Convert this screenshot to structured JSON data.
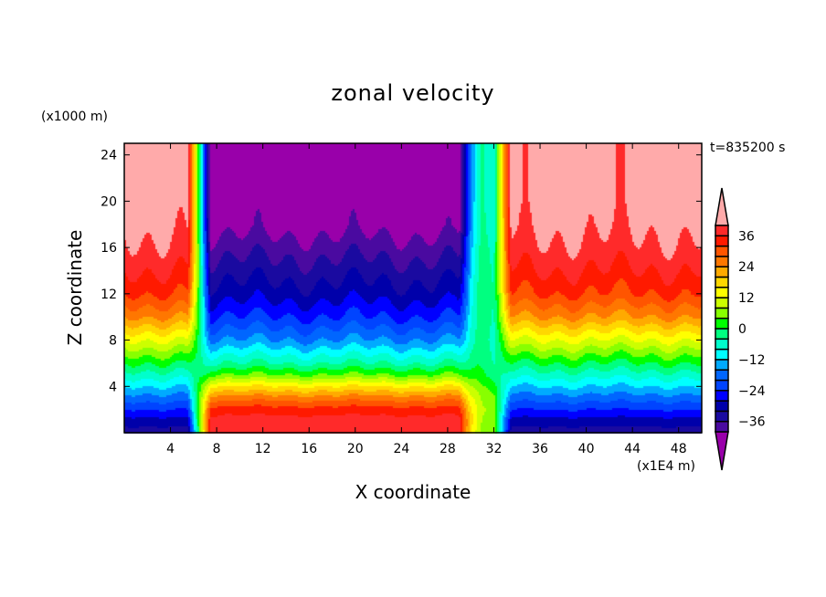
{
  "chart_data": {
    "type": "heatmap",
    "title": "zonal velocity",
    "xlabel": "X coordinate",
    "ylabel": "Z coordinate",
    "x_unit_label": "(x1E4 m)",
    "z_unit_label": "(x1000 m)",
    "time_label": "t=835200 s",
    "xlim": [
      0,
      50
    ],
    "ylim": [
      0,
      25
    ],
    "xticks": [
      4,
      8,
      12,
      16,
      20,
      24,
      28,
      32,
      36,
      40,
      44,
      48
    ],
    "yticks": [
      4,
      8,
      12,
      16,
      20,
      24
    ],
    "levels": [
      -40,
      -36,
      -32,
      -28,
      -24,
      -20,
      -16,
      -12,
      -8,
      -4,
      0,
      4,
      8,
      12,
      16,
      20,
      24,
      28,
      32,
      36,
      40
    ],
    "colorbar_labels": [
      "36",
      "24",
      "12",
      "0",
      "-12",
      "-24",
      "-36"
    ],
    "colorbar_label_values": [
      36,
      24,
      12,
      0,
      -12,
      -24,
      -36
    ],
    "colors": [
      "#4a0aa0",
      "#1a0aa0",
      "#0000aa",
      "#0000ff",
      "#0044ff",
      "#0066ff",
      "#00aaff",
      "#00ffff",
      "#00ffcc",
      "#00ff80",
      "#00ff00",
      "#88ff00",
      "#ccff00",
      "#ffff00",
      "#ffd700",
      "#ffaa00",
      "#ff7700",
      "#ff5500",
      "#ff1a00",
      "#ff2a2a"
    ],
    "under_color": "#9900aa",
    "over_color": "#ffaaaa",
    "approx_field": {
      "z": [
        0,
        1,
        2,
        3,
        4,
        5,
        6,
        7,
        8,
        9,
        10,
        11,
        12,
        13,
        14,
        16,
        18,
        20,
        22,
        25
      ],
      "outer_profile": [
        -34,
        -30,
        -24,
        -18,
        -12,
        -6,
        0,
        6,
        12,
        18,
        24,
        28,
        32,
        34,
        36,
        39,
        41,
        42,
        42,
        42
      ],
      "inner_profile": [
        38,
        38,
        34,
        26,
        16,
        4,
        -4,
        -10,
        -16,
        -20,
        -24,
        -27,
        -30,
        -32,
        -34,
        -38,
        -42,
        -43,
        -43,
        -43
      ],
      "x": [
        0,
        5.5,
        6.5,
        7.5,
        29,
        30,
        31,
        32,
        33.5,
        50
      ],
      "inner_weight": [
        0,
        0,
        0.5,
        1,
        1,
        0.7,
        0.55,
        0.55,
        0,
        0
      ]
    }
  }
}
